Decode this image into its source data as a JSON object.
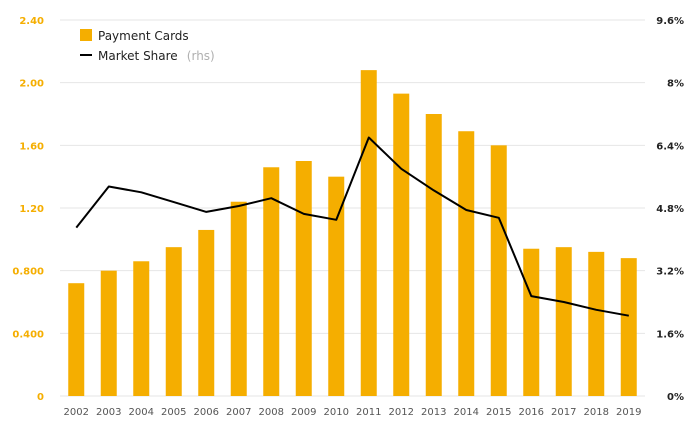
{
  "colors": {
    "bar": "#f5ae00",
    "line": "#000000",
    "grid": "#e6e6e6",
    "left_axis_text": "#f5ae00"
  },
  "legend": {
    "bar_label": "Payment Cards",
    "line_label": "Market Share",
    "line_note": "(rhs)"
  },
  "chart_data": {
    "type": "bar",
    "categories": [
      "2002",
      "2003",
      "2004",
      "2005",
      "2006",
      "2007",
      "2008",
      "2009",
      "2010",
      "2011",
      "2012",
      "2013",
      "2014",
      "2015",
      "2016",
      "2017",
      "2018",
      "2019"
    ],
    "series": [
      {
        "name": "Payment Cards",
        "type": "bar",
        "axis": "left",
        "values": [
          0.72,
          0.8,
          0.86,
          0.95,
          1.06,
          1.24,
          1.46,
          1.5,
          1.4,
          2.08,
          1.93,
          1.8,
          1.69,
          1.6,
          0.94,
          0.95,
          0.92,
          0.88
        ]
      },
      {
        "name": "Market Share",
        "type": "line",
        "axis": "right",
        "values": [
          4.3,
          5.35,
          5.2,
          4.95,
          4.7,
          4.85,
          5.05,
          4.65,
          4.5,
          6.6,
          5.8,
          5.25,
          4.75,
          4.55,
          2.55,
          2.4,
          2.2,
          2.05
        ]
      }
    ],
    "left_axis": {
      "ylim": [
        0,
        2.4
      ],
      "ticks": [
        "0",
        "0.400",
        "0.800",
        "1.20",
        "1.60",
        "2.00",
        "2.40"
      ]
    },
    "right_axis": {
      "ylim": [
        0,
        9.6
      ],
      "ticks": [
        "0%",
        "1.6%",
        "3.2%",
        "4.8%",
        "6.4%",
        "8%",
        "9.6%"
      ]
    },
    "grid": true,
    "legend_position": "top-left"
  }
}
